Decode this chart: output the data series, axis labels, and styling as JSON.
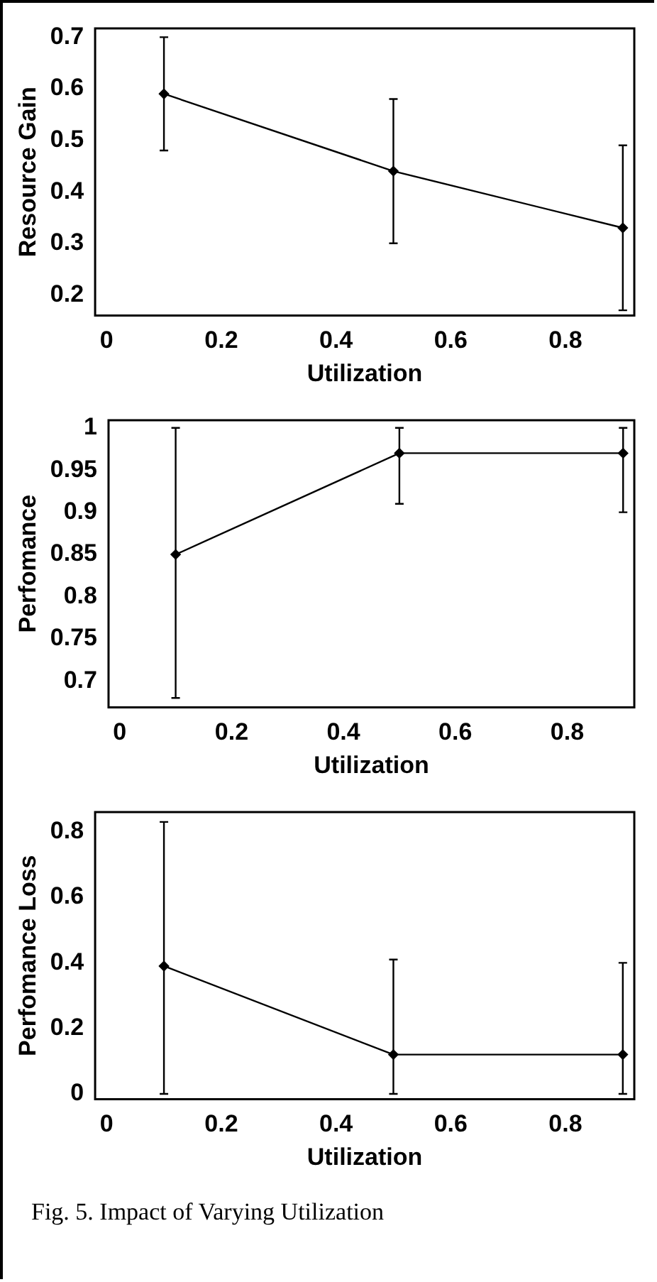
{
  "chart_data": [
    {
      "type": "line",
      "xlabel": "Utilization",
      "ylabel": "Resource Gain",
      "x": [
        0.1,
        0.5,
        0.9
      ],
      "values": [
        0.59,
        0.44,
        0.33
      ],
      "errors": [
        [
          0.48,
          0.7
        ],
        [
          0.3,
          0.58
        ],
        [
          0.17,
          0.49
        ]
      ],
      "color": "#000000",
      "marker": "diamond",
      "grid": false,
      "legend": false,
      "xlim": [
        -0.02,
        0.92
      ],
      "xticks": [
        0,
        0.2,
        0.4,
        0.6,
        0.8
      ],
      "ylim": [
        0.16,
        0.717
      ],
      "yticks": [
        0.2,
        0.3,
        0.4,
        0.5,
        0.6,
        0.7
      ]
    },
    {
      "type": "line",
      "xlabel": "Utilization",
      "ylabel": "Perfomance",
      "x": [
        0.1,
        0.5,
        0.9
      ],
      "values": [
        0.85,
        0.97,
        0.97
      ],
      "errors": [
        [
          0.68,
          1.0
        ],
        [
          0.91,
          1.0
        ],
        [
          0.9,
          1.0
        ]
      ],
      "color": "#000000",
      "marker": "diamond",
      "grid": false,
      "legend": false,
      "xlim": [
        -0.02,
        0.92
      ],
      "xticks": [
        0,
        0.2,
        0.4,
        0.6,
        0.8
      ],
      "ylim": [
        0.669,
        1.009
      ],
      "yticks": [
        0.7,
        0.75,
        0.8,
        0.85,
        0.9,
        0.95,
        1
      ]
    },
    {
      "type": "line",
      "xlabel": "Utilization",
      "ylabel": "Perfomance Loss",
      "x": [
        0.1,
        0.5,
        0.9
      ],
      "values": [
        0.39,
        0.12,
        0.12
      ],
      "errors": [
        [
          0.0,
          0.83
        ],
        [
          0.0,
          0.41
        ],
        [
          0.0,
          0.4
        ]
      ],
      "color": "#000000",
      "marker": "diamond",
      "grid": false,
      "legend": false,
      "xlim": [
        -0.02,
        0.92
      ],
      "xticks": [
        0,
        0.2,
        0.4,
        0.6,
        0.8
      ],
      "ylim": [
        -0.016,
        0.86
      ],
      "yticks": [
        0,
        0.2,
        0.4,
        0.6,
        0.8
      ],
      "annotations": [
        "Fig. 5. Impact of Varying Utilization"
      ]
    }
  ]
}
